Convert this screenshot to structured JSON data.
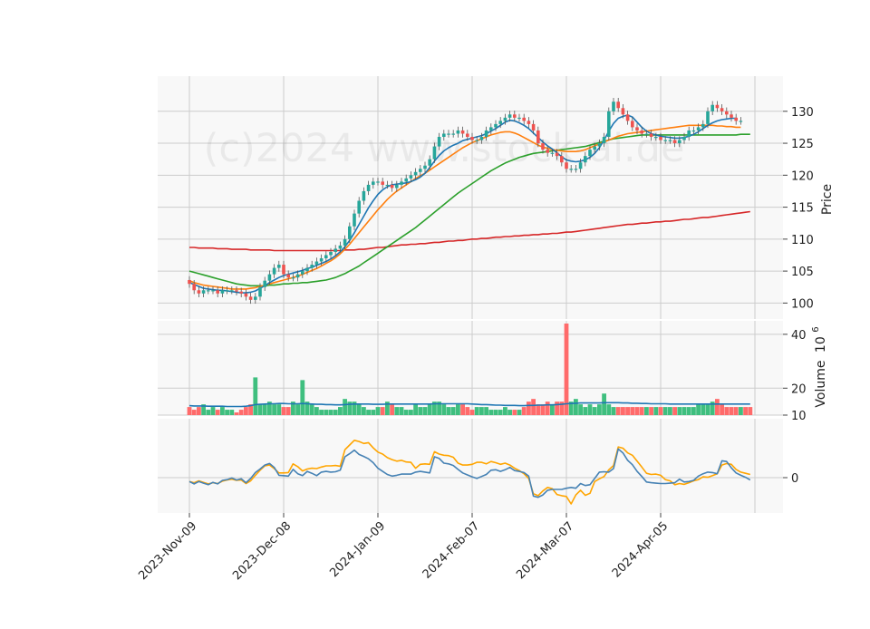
{
  "watermark": "(c)2024 www.stock-ai.de",
  "colors": {
    "up": "#26a69a",
    "up_fill": "#3fbf7f",
    "down": "#ef5350",
    "down_fill": "#ff6b6b",
    "ma_short": "#1f77b4",
    "ma_mid": "#ff7f0e",
    "ma_long": "#2ca02c",
    "ma_200": "#d62728",
    "vol_ma": "#1f77b4",
    "osc_a": "#4682b4",
    "osc_b": "#ffa500",
    "panel_bg": "#f8f8f8",
    "grid": "#cccccc"
  },
  "chart_data": {
    "type": "candlestick",
    "x_ticks": [
      "2023-Nov-09",
      "2023-Dec-08",
      "2024-Jan-09",
      "2024-Feb-07",
      "2024-Mar-07",
      "2024-Apr-05"
    ],
    "x_tick_index": [
      0,
      20,
      40,
      60,
      80,
      100
    ],
    "n_points": 120,
    "price_panel": {
      "ylabel": "Price",
      "ylim": [
        97.5,
        135.5
      ],
      "y_ticks": [
        100,
        105,
        110,
        115,
        120,
        125,
        130
      ],
      "close": [
        103,
        102,
        101.5,
        102,
        102,
        102,
        101.5,
        102,
        102,
        102,
        101.8,
        101.5,
        101,
        100.5,
        101,
        102.5,
        103.5,
        104.5,
        105.5,
        106,
        104.5,
        104,
        104,
        104.5,
        105,
        105.5,
        106,
        106.5,
        107,
        107.5,
        108,
        108.5,
        109,
        110,
        112,
        114,
        116,
        117.5,
        118.5,
        119,
        119,
        118.5,
        118.5,
        118,
        118.5,
        119,
        119.5,
        120,
        120.5,
        121,
        121.5,
        122.5,
        124.5,
        126,
        126.5,
        126.5,
        126.5,
        127,
        126.5,
        126,
        125.5,
        125.5,
        126,
        127,
        127.5,
        128,
        128.5,
        129,
        129.5,
        129,
        129,
        128.5,
        128,
        127,
        125,
        124,
        123.5,
        123.5,
        123,
        122,
        121,
        121,
        121,
        122,
        123,
        124,
        124.5,
        125,
        126,
        130,
        131.5,
        130.5,
        129.5,
        128.5,
        127.5,
        127,
        126.5,
        126.5,
        126,
        126,
        125.5,
        125.5,
        125.5,
        125,
        125.5,
        126,
        127,
        127,
        127.5,
        128,
        130,
        131,
        130.5,
        130,
        129.5,
        129,
        128.5,
        128.5
      ],
      "ma_short": [
        103.2,
        102.9,
        102.6,
        102.3,
        102.2,
        102.1,
        102,
        102,
        101.9,
        101.8,
        101.7,
        101.6,
        101.6,
        101.7,
        101.9,
        102.3,
        102.7,
        103.2,
        103.6,
        104,
        104.3,
        104.5,
        104.7,
        104.9,
        105.1,
        105.4,
        105.6,
        105.9,
        106.2,
        106.5,
        106.9,
        107.4,
        108,
        108.8,
        109.8,
        111,
        112.3,
        113.6,
        114.9,
        116,
        117,
        117.7,
        118.2,
        118.5,
        118.6,
        118.7,
        118.8,
        119,
        119.3,
        119.7,
        120.3,
        121.2,
        122.2,
        123.1,
        123.8,
        124.3,
        124.7,
        125,
        125.4,
        125.6,
        125.8,
        126,
        126.2,
        126.5,
        126.9,
        127.3,
        127.8,
        128.3,
        128.6,
        128.5,
        128.2,
        127.8,
        127.3,
        126.6,
        125.9,
        125.2,
        124.6,
        124.1,
        123.5,
        122.9,
        122.4,
        122.2,
        122.1,
        122.2,
        122.4,
        122.8,
        123.4,
        124.3,
        125.5,
        126.9,
        128.1,
        128.9,
        129.2,
        129.4,
        129.1,
        128.3,
        127.5,
        126.9,
        126.5,
        126.3,
        126.1,
        126,
        125.9,
        125.8,
        125.8,
        125.9,
        126.1,
        126.4,
        126.8,
        127.3,
        127.8,
        128.2,
        128.5,
        128.7,
        128.8,
        128.9,
        128.9
      ],
      "ma_mid": [
        103.5,
        103.2,
        103,
        102.8,
        102.7,
        102.6,
        102.5,
        102.4,
        102.3,
        102.2,
        102.2,
        102.2,
        102.2,
        102.3,
        102.4,
        102.6,
        102.8,
        103,
        103.2,
        103.4,
        103.6,
        103.8,
        104,
        104.2,
        104.5,
        104.8,
        105.1,
        105.4,
        105.8,
        106.2,
        106.6,
        107.1,
        107.7,
        108.4,
        109.2,
        110.1,
        111,
        111.9,
        112.8,
        113.7,
        114.6,
        115.4,
        116.2,
        116.9,
        117.5,
        118,
        118.5,
        119,
        119.5,
        119.9,
        120.3,
        120.8,
        121.3,
        121.8,
        122.3,
        122.8,
        123.3,
        123.8,
        124.3,
        124.7,
        125.1,
        125.4,
        125.7,
        126,
        126.3,
        126.5,
        126.7,
        126.8,
        126.8,
        126.6,
        126.3,
        125.9,
        125.5,
        125.1,
        124.7,
        124.4,
        124.2,
        124,
        123.9,
        123.8,
        123.7,
        123.7,
        123.7,
        123.8,
        124,
        124.3,
        124.6,
        124.9,
        125.2,
        125.5,
        125.8,
        126.1,
        126.3,
        126.5,
        126.6,
        126.7,
        126.8,
        126.9,
        127,
        127.1,
        127.2,
        127.3,
        127.4,
        127.5,
        127.6,
        127.7,
        127.8,
        127.8,
        127.8,
        127.8,
        127.8,
        127.8,
        127.7,
        127.7,
        127.6,
        127.6,
        127.5,
        127.5
      ],
      "ma_long": [
        105,
        104.8,
        104.6,
        104.4,
        104.2,
        104,
        103.8,
        103.6,
        103.4,
        103.2,
        103,
        102.9,
        102.8,
        102.7,
        102.7,
        102.7,
        102.7,
        102.8,
        102.8,
        102.9,
        103,
        103,
        103.1,
        103.1,
        103.2,
        103.2,
        103.3,
        103.4,
        103.5,
        103.6,
        103.8,
        104,
        104.3,
        104.6,
        105,
        105.4,
        105.8,
        106.3,
        106.8,
        107.3,
        107.8,
        108.3,
        108.8,
        109.3,
        109.8,
        110.3,
        110.8,
        111.3,
        111.8,
        112.4,
        113,
        113.6,
        114.2,
        114.8,
        115.4,
        116,
        116.6,
        117.2,
        117.7,
        118.2,
        118.7,
        119.2,
        119.7,
        120.2,
        120.7,
        121.1,
        121.5,
        121.9,
        122.2,
        122.5,
        122.8,
        123,
        123.2,
        123.4,
        123.5,
        123.6,
        123.7,
        123.8,
        123.9,
        124,
        124.1,
        124.2,
        124.3,
        124.4,
        124.5,
        124.7,
        124.9,
        125.1,
        125.3,
        125.5,
        125.7,
        125.8,
        125.9,
        126,
        126.1,
        126.2,
        126.3,
        126.3,
        126.3,
        126.3,
        126.3,
        126.3,
        126.3,
        126.3,
        126.3,
        126.3,
        126.3,
        126.3,
        126.3,
        126.3,
        126.3,
        126.3,
        126.3,
        126.3,
        126.3,
        126.3,
        126.3,
        126.4,
        126.4,
        126.4
      ],
      "ma_200": [
        108.7,
        108.7,
        108.6,
        108.6,
        108.6,
        108.6,
        108.5,
        108.5,
        108.5,
        108.4,
        108.4,
        108.4,
        108.4,
        108.3,
        108.3,
        108.3,
        108.3,
        108.3,
        108.2,
        108.2,
        108.2,
        108.2,
        108.2,
        108.2,
        108.2,
        108.2,
        108.2,
        108.2,
        108.2,
        108.2,
        108.2,
        108.2,
        108.2,
        108.3,
        108.3,
        108.3,
        108.4,
        108.4,
        108.5,
        108.6,
        108.7,
        108.7,
        108.8,
        108.9,
        109,
        109.1,
        109.1,
        109.2,
        109.2,
        109.3,
        109.3,
        109.4,
        109.5,
        109.5,
        109.6,
        109.7,
        109.7,
        109.8,
        109.8,
        109.9,
        110,
        110,
        110.1,
        110.1,
        110.2,
        110.3,
        110.3,
        110.4,
        110.4,
        110.5,
        110.5,
        110.6,
        110.6,
        110.7,
        110.7,
        110.8,
        110.8,
        110.9,
        110.9,
        111,
        111.1,
        111.1,
        111.2,
        111.3,
        111.4,
        111.5,
        111.6,
        111.7,
        111.8,
        111.9,
        112,
        112.1,
        112.2,
        112.3,
        112.3,
        112.4,
        112.5,
        112.5,
        112.6,
        112.7,
        112.7,
        112.8,
        112.8,
        112.9,
        113,
        113.1,
        113.1,
        113.2,
        113.3,
        113.4,
        113.4,
        113.5,
        113.6,
        113.7,
        113.8,
        113.9,
        114,
        114.1,
        114.2,
        114.3
      ]
    },
    "volume_panel": {
      "ylabel": "Volume",
      "ylabel_exp": "10",
      "ylabel_sup": "6",
      "ylim": [
        10,
        45
      ],
      "y_ticks": [
        10,
        20,
        40
      ],
      "volume": [
        13,
        12,
        13,
        14,
        12,
        13,
        12,
        13,
        12,
        12,
        11,
        12,
        13,
        14,
        24,
        14,
        14,
        15,
        14,
        14,
        13,
        13,
        15,
        14,
        23,
        15,
        14,
        13,
        12,
        12,
        12,
        12,
        13,
        16,
        15,
        15,
        14,
        13,
        12,
        12,
        13,
        13,
        15,
        14,
        13,
        13,
        12,
        12,
        14,
        13,
        13,
        14,
        15,
        15,
        14,
        13,
        13,
        14,
        14,
        13,
        12,
        13,
        13,
        13,
        12,
        12,
        12,
        13,
        12,
        12,
        12,
        13,
        15,
        16,
        14,
        14,
        15,
        14,
        15,
        15,
        44,
        15,
        16,
        14,
        13,
        14,
        13,
        14,
        18,
        14,
        13,
        13,
        13,
        13,
        13,
        13,
        13,
        13,
        13,
        13,
        13,
        13,
        13,
        13,
        13,
        13,
        13,
        13,
        14,
        14,
        14,
        15,
        16,
        14,
        13,
        13,
        13,
        13,
        13,
        13
      ],
      "vol_ma": [
        13.5,
        13.4,
        13.4,
        13.4,
        13.3,
        13.3,
        13.3,
        13.3,
        13.2,
        13.2,
        13.2,
        13.2,
        13.3,
        13.5,
        13.9,
        14,
        14.1,
        14.2,
        14.2,
        14.3,
        14.3,
        14.2,
        14.2,
        14.2,
        14.3,
        14.2,
        14.1,
        14,
        14,
        13.9,
        13.9,
        13.8,
        13.8,
        13.9,
        14,
        14.1,
        14.1,
        14.1,
        14.1,
        14,
        14,
        14,
        14.1,
        14.1,
        14.1,
        14.1,
        14.1,
        14.1,
        14.1,
        14.1,
        14.1,
        14.1,
        14.2,
        14.2,
        14.2,
        14.2,
        14.2,
        14.2,
        14.2,
        14.2,
        14.1,
        14,
        13.9,
        13.9,
        13.8,
        13.7,
        13.7,
        13.6,
        13.6,
        13.6,
        13.5,
        13.5,
        13.6,
        13.6,
        13.7,
        13.7,
        13.8,
        13.8,
        13.9,
        14,
        14.2,
        14.3,
        14.4,
        14.5,
        14.5,
        14.5,
        14.5,
        14.5,
        14.6,
        14.6,
        14.6,
        14.6,
        14.5,
        14.5,
        14.4,
        14.4,
        14.3,
        14.3,
        14.2,
        14.2,
        14.2,
        14.2,
        14.1,
        14.1,
        14.1,
        14.1,
        14.1,
        14.1,
        14.1,
        14.1,
        14.1,
        14.1,
        14.1,
        14.1,
        14.1,
        14.1,
        14.1,
        14.1,
        14.1,
        14.1
      ]
    },
    "oscillator_panel": {
      "ylim": [
        -9,
        15
      ],
      "y_ticks": [
        0
      ],
      "series_a": [
        -1,
        -1.6,
        -1,
        -1.4,
        -1.8,
        -1.2,
        -1.6,
        -0.7,
        -0.5,
        -0.1,
        -0.6,
        -0.3,
        -1.3,
        -0.2,
        1.3,
        2.2,
        3.2,
        3.6,
        2.6,
        0.6,
        0.5,
        0.4,
        2.1,
        1,
        0.5,
        1.6,
        1.1,
        0.5,
        1.4,
        1.6,
        1.4,
        1.5,
        1.9,
        5.3,
        6.1,
        7,
        5.9,
        5.4,
        4.8,
        3.8,
        2.4,
        1.6,
        0.8,
        0.4,
        0.6,
        0.9,
        0.9,
        0.9,
        1.4,
        1.6,
        1.4,
        1.2,
        5.3,
        4.9,
        3.7,
        3.5,
        3.1,
        2.1,
        1.2,
        0.7,
        0.2,
        -0.2,
        0.3,
        0.8,
        1.9,
        2,
        1.6,
        2,
        2.6,
        1.8,
        1.6,
        1.3,
        0.4,
        -4.7,
        -5,
        -4.4,
        -3.2,
        -3,
        -3,
        -3,
        -2.7,
        -2.5,
        -2.7,
        -1.5,
        -2,
        -1.8,
        -0.2,
        1.4,
        1.5,
        1.4,
        2.3,
        7.3,
        6.3,
        4.4,
        3.3,
        1.6,
        0.3,
        -1.1,
        -1.3,
        -1.4,
        -1.5,
        -1.5,
        -1.4,
        -1.3,
        -0.4,
        -1.1,
        -1,
        -0.7,
        0.4,
        1,
        1.4,
        1.3,
        1,
        4.3,
        4.1,
        2.5,
        1.2,
        0.6,
        0.1,
        -0.6
      ],
      "series_b": [
        -1,
        -1.3,
        -0.8,
        -1.2,
        -1.6,
        -1.3,
        -1.5,
        -0.9,
        -0.6,
        -0.4,
        -0.7,
        -0.6,
        -1.5,
        -0.8,
        0.6,
        1.9,
        3,
        3.2,
        2.3,
        1.2,
        1.2,
        1.3,
        3.5,
        2.8,
        1.7,
        2.2,
        2.4,
        2.3,
        2.7,
        3,
        3,
        3.1,
        2.9,
        7.1,
        8.3,
        9.5,
        9.2,
        8.7,
        8.9,
        7.6,
        6.5,
        6,
        5.1,
        4.6,
        4.2,
        4.4,
        4,
        3.9,
        2.4,
        3.4,
        3.5,
        3.4,
        6.6,
        6,
        5.7,
        5.6,
        5.2,
        3.7,
        3.2,
        3.2,
        3.4,
        3.9,
        3.9,
        3.5,
        4.1,
        3.8,
        3.4,
        3.7,
        3.2,
        2.4,
        1.8,
        1,
        -0.2,
        -4.1,
        -4.6,
        -3.4,
        -2.5,
        -2.8,
        -4.3,
        -4.6,
        -4.8,
        -6.7,
        -4.4,
        -3.2,
        -4.5,
        -4,
        -1,
        -0.3,
        0.3,
        2,
        3.1,
        7.8,
        7.5,
        6.3,
        5.7,
        4.2,
        2.7,
        1.1,
        0.8,
        0.9,
        0.6,
        -0.5,
        -0.8,
        -1.8,
        -1.5,
        -1.7,
        -1.3,
        -0.8,
        -0.5,
        0.2,
        0.1,
        0.5,
        1,
        3.2,
        3.6,
        3.4,
        2.1,
        1.4,
        1.1,
        0.8
      ]
    }
  }
}
